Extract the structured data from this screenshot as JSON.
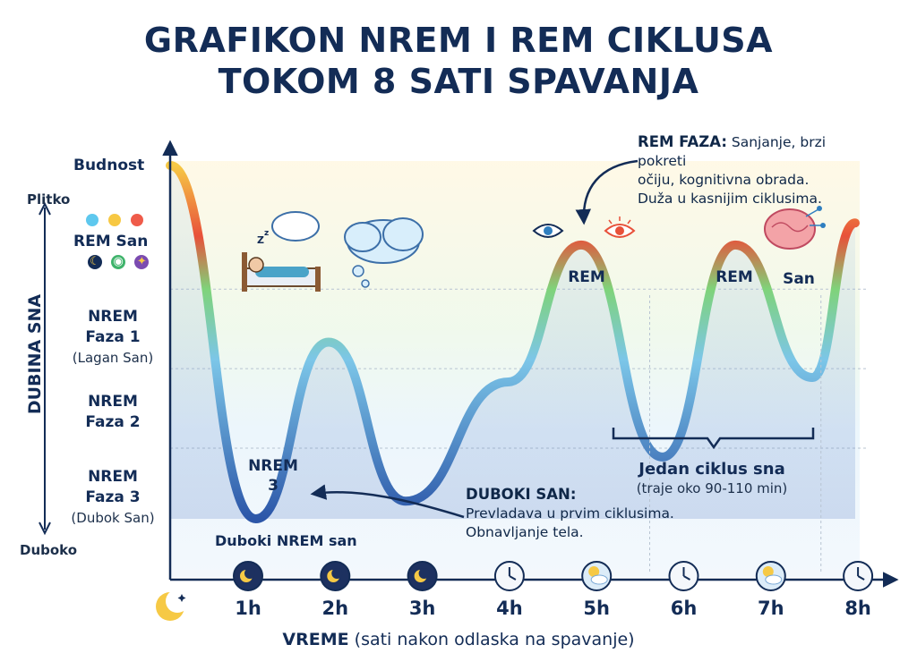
{
  "title": {
    "line1": "GRAFIKON NREM I REM CIKLUSA",
    "line2": "TOKOM 8 SATI SPAVANJA"
  },
  "colors": {
    "navy": "#132c56",
    "rem": "#e8513a",
    "light_sleep": "#7fd37a",
    "nrem2": "#7cc6e8",
    "deep": "#2c56a8",
    "awake": "#f6c945"
  },
  "y_axis": {
    "label": "DUBINA SNA",
    "top_label": "Plitko",
    "bottom_label": "Duboko",
    "levels": [
      {
        "name": "Budnost",
        "sub": ""
      },
      {
        "name": "REM San",
        "sub": ""
      },
      {
        "name": "NREM Faza 1",
        "sub": "(Lagan San)"
      },
      {
        "name": "NREM Faza 2",
        "sub": ""
      },
      {
        "name": "NREM Faza 3",
        "sub": "(Dubok San)"
      }
    ],
    "rem_dots": [
      "#5ec8ee",
      "#f7c843",
      "#ef5b4a"
    ],
    "rem_icons": [
      "moon-icon",
      "eye-icon",
      "star-icon"
    ]
  },
  "x_axis": {
    "label_bold": "VREME",
    "label_rest": "(sati nakon odlaska na spavanje)",
    "ticks": [
      "1h",
      "2h",
      "3h",
      "4h",
      "5h",
      "6h",
      "7h",
      "8h"
    ],
    "tick_icons": [
      "moon-icon",
      "moon-icon",
      "stars-icon",
      "clock-icon",
      "sun-cloud-icon",
      "clock-icon",
      "sun-cloud-icon",
      "clock-icon"
    ]
  },
  "chart_data": {
    "type": "line",
    "description_levels": {
      "Budnost": 0,
      "REM": 1,
      "NREM1": 2,
      "NREM2": 3,
      "NREM3": 4
    },
    "x_unit": "h",
    "xlim": [
      0,
      8
    ],
    "ylim": [
      0,
      4
    ],
    "points": [
      {
        "x": 0.0,
        "y": 0.0
      },
      {
        "x": 1.0,
        "y": 4.0
      },
      {
        "x": 1.85,
        "y": 2.0
      },
      {
        "x": 2.75,
        "y": 3.8
      },
      {
        "x": 3.95,
        "y": 2.45
      },
      {
        "x": 4.8,
        "y": 0.9
      },
      {
        "x": 5.75,
        "y": 3.3
      },
      {
        "x": 6.6,
        "y": 0.9
      },
      {
        "x": 7.5,
        "y": 2.4
      },
      {
        "x": 8.0,
        "y": 0.65
      }
    ],
    "region_labels": [
      {
        "text": "NREM",
        "text2": "3",
        "x": 1.1,
        "y": 3.35
      },
      {
        "text": "REM",
        "x": 4.8,
        "y": 1.3
      },
      {
        "text": "REM",
        "x": 6.6,
        "y": 1.3
      },
      {
        "text": "San",
        "x": 7.35,
        "y": 1.3
      }
    ]
  },
  "labels": {
    "deep_nrem": "Duboki NREM san",
    "cycle_title": "Jedan ciklus sna",
    "cycle_sub": "(traje oko 90-110 min)"
  },
  "annotations": {
    "rem": {
      "title": "REM FAZA:",
      "line1": "Sanjanje, brzi pokreti",
      "line2": "očiju, kognitivna obrada.",
      "line3": "Duža u kasnijim ciklusima."
    },
    "deep": {
      "title": "DUBOKI SAN:",
      "line1": "Prevladava u prvim ciklusima.",
      "line2": "Obnavljanje tela."
    }
  },
  "decorations": [
    "bed-sleeping-icon",
    "cloud-icon",
    "eye-icon",
    "brain-icon",
    "crescent-moon-icon"
  ]
}
